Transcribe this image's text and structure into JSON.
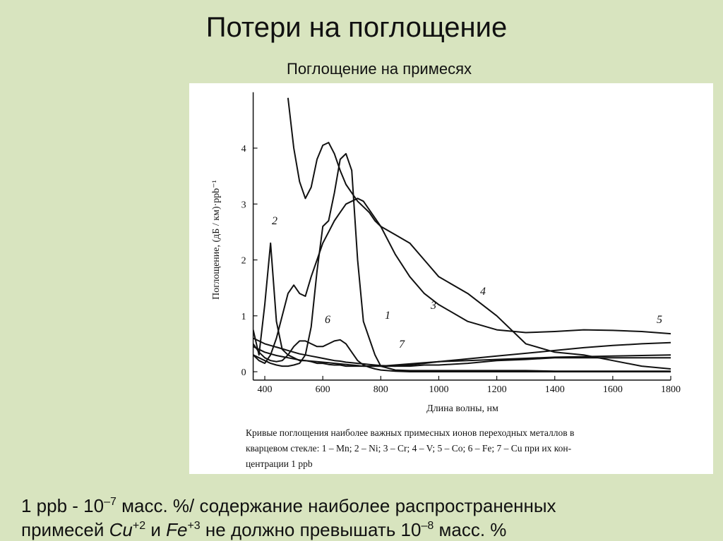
{
  "slide": {
    "title": "Потери на поглощение",
    "subtitle": "Поглощение на примесях",
    "note_line1": [
      "1 ppb - 10",
      "–7",
      " масс. %/ содержание наиболее распространенных"
    ],
    "note_line2": [
      "примесей ",
      "Cu",
      "+2",
      " и ",
      "Fe",
      "+3",
      " не должно превышать 10",
      "–8",
      " масс. %"
    ]
  },
  "chart_data": {
    "type": "line",
    "x_label": "Длина волны, нм",
    "y_label": "Поглощение, (дБ / км)·ppb⁻¹",
    "caption": [
      "Кривые поглощения наиболее важных примесных ионов переходных металлов в",
      "кварцевом стекле: 1 – Mn; 2 – Ni; 3 – Cr; 4 – V; 5 – Co; 6 – Fe; 7 – Cu при их кон-",
      "центрации 1 ppb"
    ],
    "xlim": [
      360,
      1800
    ],
    "ylim": [
      -0.15,
      5
    ],
    "xticks": [
      400,
      600,
      800,
      1000,
      1200,
      1400,
      1600,
      1800
    ],
    "yticks": [
      0,
      1,
      2,
      3,
      4
    ],
    "x": [
      360,
      380,
      400,
      420,
      440,
      460,
      480,
      500,
      520,
      540,
      560,
      580,
      600,
      620,
      640,
      660,
      680,
      700,
      720,
      740,
      760,
      780,
      800,
      850,
      900,
      950,
      1000,
      1100,
      1200,
      1300,
      1400,
      1500,
      1600,
      1700,
      1800
    ],
    "series": [
      {
        "name": "1",
        "color": "#111111",
        "values": [
          0.3,
          0.25,
          0.2,
          0.15,
          0.12,
          0.1,
          0.1,
          0.12,
          0.15,
          0.3,
          0.8,
          1.8,
          2.6,
          2.7,
          3.2,
          3.8,
          3.9,
          3.6,
          2.0,
          0.9,
          0.6,
          0.3,
          0.1,
          0.03,
          0.02,
          0.02,
          0.02,
          0.02,
          0.02,
          0.02,
          0.01,
          0.01,
          0.01,
          0.01,
          0.01
        ]
      },
      {
        "name": "2",
        "color": "#111111",
        "values": [
          0.75,
          0.3,
          1.2,
          2.3,
          0.9,
          0.4,
          0.3,
          0.25,
          0.2,
          0.2,
          0.18,
          0.15,
          0.15,
          0.13,
          0.12,
          0.12,
          0.1,
          0.1,
          0.1,
          0.1,
          0.1,
          0.1,
          0.1,
          0.1,
          0.1,
          0.12,
          0.12,
          0.15,
          0.2,
          0.22,
          0.25,
          0.25,
          0.25,
          0.25,
          0.25
        ]
      },
      {
        "name": "3",
        "color": "#111111",
        "values": [
          0.3,
          0.2,
          0.15,
          0.3,
          0.6,
          1.0,
          1.4,
          1.55,
          1.4,
          1.35,
          1.7,
          2.0,
          2.3,
          2.5,
          2.7,
          2.85,
          3.0,
          3.05,
          3.1,
          3.05,
          2.9,
          2.75,
          2.6,
          2.1,
          1.7,
          1.4,
          1.2,
          0.9,
          0.75,
          0.7,
          0.72,
          0.75,
          0.74,
          0.72,
          0.68
        ]
      },
      {
        "name": "4",
        "color": "#111111",
        "values": [
          null,
          null,
          null,
          null,
          null,
          null,
          4.9,
          4.0,
          3.4,
          3.1,
          3.3,
          3.8,
          4.05,
          4.1,
          3.9,
          3.6,
          3.35,
          3.2,
          3.05,
          2.95,
          2.85,
          2.7,
          2.6,
          2.45,
          2.3,
          2.0,
          1.7,
          1.4,
          1.0,
          0.5,
          0.35,
          0.3,
          0.2,
          0.1,
          0.05
        ]
      },
      {
        "name": "5",
        "color": "#111111",
        "values": [
          0.6,
          0.55,
          0.5,
          0.47,
          0.44,
          0.41,
          0.38,
          0.35,
          0.32,
          0.3,
          0.28,
          0.26,
          0.24,
          0.22,
          0.2,
          0.19,
          0.17,
          0.16,
          0.15,
          0.14,
          0.13,
          0.12,
          0.11,
          0.1,
          0.12,
          0.15,
          0.18,
          0.23,
          0.28,
          0.33,
          0.38,
          0.43,
          0.47,
          0.5,
          0.52
        ]
      },
      {
        "name": "6",
        "color": "#111111",
        "values": [
          0.5,
          0.35,
          0.25,
          0.2,
          0.18,
          0.2,
          0.3,
          0.45,
          0.55,
          0.55,
          0.5,
          0.45,
          0.45,
          0.5,
          0.55,
          0.57,
          0.5,
          0.35,
          0.2,
          0.12,
          0.08,
          0.05,
          0.03,
          0.01,
          0,
          0,
          0,
          0,
          0,
          0,
          0,
          0,
          0,
          0,
          0
        ]
      },
      {
        "name": "7",
        "color": "#111111",
        "values": [
          0.45,
          0.4,
          0.35,
          0.32,
          0.29,
          0.27,
          0.25,
          0.23,
          0.21,
          0.2,
          0.19,
          0.18,
          0.17,
          0.16,
          0.15,
          0.14,
          0.13,
          0.12,
          0.11,
          0.1,
          0.1,
          0.1,
          0.1,
          0.12,
          0.14,
          0.16,
          0.18,
          0.2,
          0.22,
          0.24,
          0.26,
          0.27,
          0.28,
          0.29,
          0.3
        ]
      }
    ]
  }
}
